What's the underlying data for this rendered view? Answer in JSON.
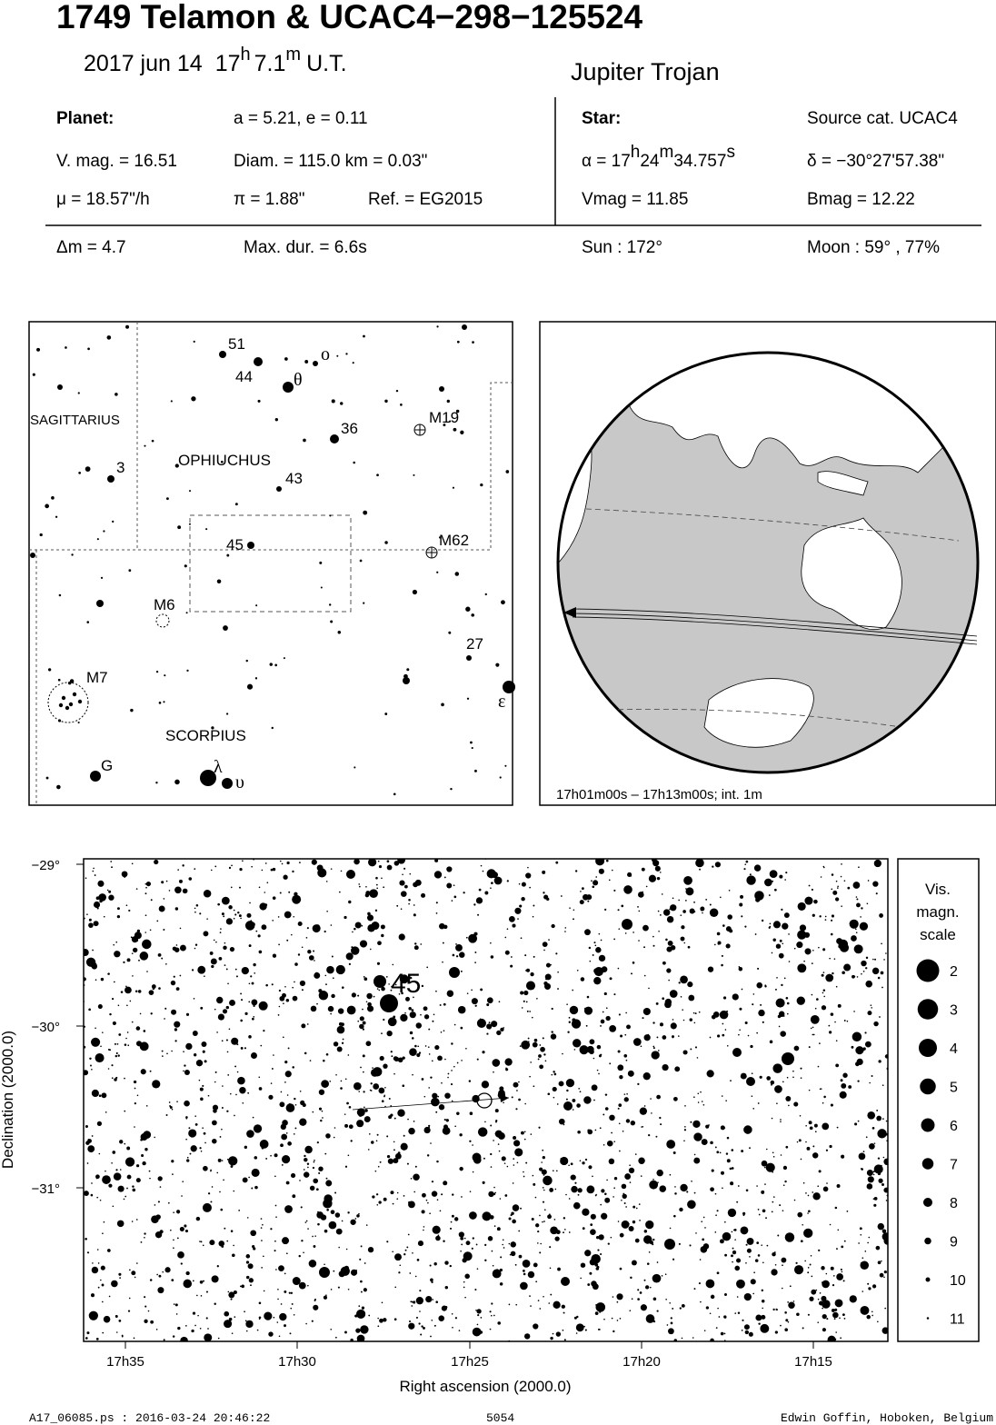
{
  "header": {
    "title": "1749 Telamon  &  UCAC4−298−125524",
    "date": "2017 jun 14",
    "time": [
      "17",
      "h",
      "7.1",
      "m",
      "U.T."
    ],
    "class": "Jupiter Trojan"
  },
  "planet": {
    "heading": "Planet:",
    "orbit": "a = 5.21, e = 0.11",
    "vmag": "V. mag. = 16.51",
    "diam": "Diam. = 115.0 km = 0.03\"",
    "mu": "μ =  18.57\"/h",
    "pi": "π =  1.88\"",
    "ref": "Ref. = EG2015"
  },
  "star": {
    "heading": "Star:",
    "source": "Source cat.  UCAC4",
    "ra": [
      "α = 17",
      "h",
      "24",
      "m",
      "34.757",
      "s"
    ],
    "dec": "δ = −30°27'57.38\"",
    "vmag": "Vmag = 11.85",
    "bmag": "Bmag = 12.22"
  },
  "event": {
    "dm": "Δm = 4.7",
    "maxdur": "Max. dur. = 6.6s",
    "sun": "Sun : 172°",
    "moon": "Moon :  59° , 77%"
  },
  "finder": {
    "labels": [
      "51",
      "o",
      "44",
      "θ",
      "SAGITTARIUS",
      "M19",
      "36",
      "OPHIUCHUS",
      "3",
      "43",
      "45",
      "M62",
      "M6",
      "27",
      "M7",
      "ε",
      "SCORPIUS",
      "G",
      "λ",
      "υ"
    ]
  },
  "globe": {
    "caption": "17h01m00s – 17h13m00s; int.  1m"
  },
  "detail": {
    "yticks": [
      "−29°",
      "−30°",
      "−31°"
    ],
    "xticks": [
      "17h35",
      "17h30",
      "17h25",
      "17h20",
      "17h15"
    ],
    "xlabel": "Right ascension (2000.0)",
    "ylabel": "Declination (2000.0)",
    "star_label": "45",
    "scale": {
      "title": [
        "Vis.",
        "magn.",
        "scale"
      ],
      "mags": [
        2,
        3,
        4,
        5,
        6,
        7,
        8,
        9,
        10,
        11
      ]
    }
  },
  "footer": {
    "file": "A17_06085.ps : 2016-03-24 20:46:22",
    "page": "5054",
    "author": "Edwin Goffin, Hoboken, Belgium"
  }
}
